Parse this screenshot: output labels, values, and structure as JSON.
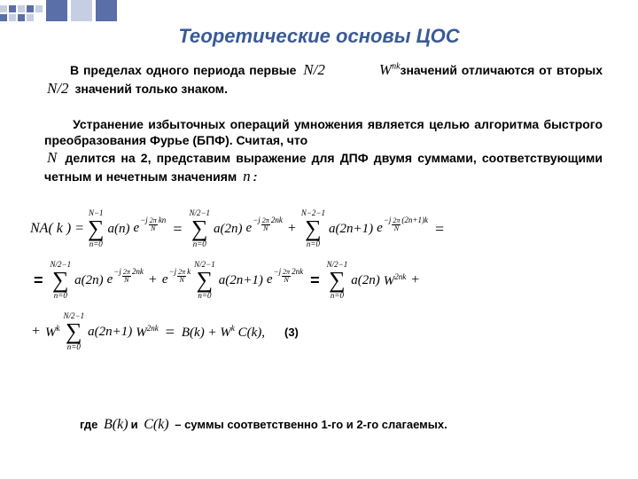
{
  "title": {
    "text": "Теоретические основы ЦОС",
    "color": "#3a5a96",
    "fontsize": 22
  },
  "decoration": {
    "dark_color": "#5a6fa8",
    "light_color": "#c6cee4"
  },
  "paragraph1": {
    "indent_prefix": "В пределах одного периода первые",
    "math1": "N/2",
    "W_nk": "W",
    "W_nk_sup": "nk",
    "mid": "значений отличаются от вторых",
    "math2": "N/2",
    "tail": "значений только знаком."
  },
  "paragraph2": {
    "line1": "Устранение избыточных операций умножения является целью алгоритма быстрого преобразования Фурье (БПФ). Считая, что",
    "mathN": "N",
    "line2": "делится на 2, представим выражение для ДПФ двумя суммами, соответствующими четным и нечетным значениям",
    "mathn": "n",
    "colon": ":"
  },
  "formula": {
    "lhs": "NA( k ) =",
    "sum_a": {
      "upper": "N−1",
      "lower": "n=0",
      "term": "a(n)",
      "exp_prefix": "−j",
      "exp_num": "2π",
      "exp_den": "N",
      "exp_tail": "kn"
    },
    "eq1": "=",
    "sum_b": {
      "upper": "N/2−1",
      "lower": "n=0",
      "term": "a(2n)",
      "exp_prefix": "−j",
      "exp_num": "2π",
      "exp_den": "N",
      "exp_tail": "2nk"
    },
    "plus1": "+",
    "sum_c": {
      "upper": "N−2−1",
      "lower": "n=0",
      "term": "a(2n+1)",
      "exp_prefix": "−j",
      "exp_num": "2π",
      "exp_den": "N",
      "exp_tail": "(2n+1)k"
    },
    "traileq1": "=",
    "row2_lead": "=",
    "sum_d": {
      "upper": "N/2−1",
      "lower": "n=0",
      "term": "a(2n)",
      "exp_prefix": "−j",
      "exp_num": "2π",
      "exp_den": "N",
      "exp_tail": "2nk"
    },
    "plus2": "+",
    "e_factor": {
      "prefix": "−j",
      "num": "2π",
      "den": "N",
      "tail": "k"
    },
    "sum_e": {
      "upper": "N/2−1",
      "lower": "n=0",
      "term": "a(2n+1)",
      "exp_prefix": "−j",
      "exp_num": "2π",
      "exp_den": "N",
      "exp_tail": "2nk"
    },
    "eq2": "=",
    "sum_f": {
      "upper": "N/2−1",
      "lower": "n=0",
      "term": "a(2n)",
      "W_sup": "2nk"
    },
    "plus_tail2": "+",
    "row3_lead": "+",
    "Wk": "W",
    "Wk_sup": "k",
    "sum_g": {
      "upper": "N/2−1",
      "lower": "n=0",
      "term": "a(2n+1)",
      "W_sup": "2nk"
    },
    "eq3": "=",
    "BkWkCk": "B(k) + W",
    "BkWkCk_sup": "k",
    "Ck": " C(k),",
    "label": "(3)"
  },
  "footer": {
    "where": "где",
    "Bk": "B(k)",
    "and": "и",
    "Ck": "C(k)",
    "tail": " – суммы соответственно 1-го и 2-го слагаемых."
  },
  "style": {
    "body_fontsize": 14,
    "body_color": "#000000",
    "background": "#ffffff"
  }
}
